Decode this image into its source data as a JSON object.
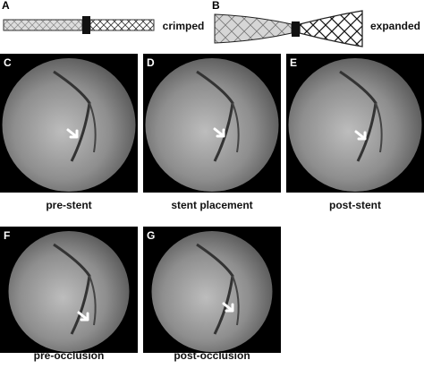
{
  "stents": [
    {
      "label": "A",
      "caption": "crimped"
    },
    {
      "label": "B",
      "caption": "expanded"
    }
  ],
  "panels": [
    {
      "label": "C",
      "caption": "pre-stent"
    },
    {
      "label": "D",
      "caption": "stent placement"
    },
    {
      "label": "E",
      "caption": "post-stent"
    },
    {
      "label": "F",
      "caption": "pre-occlusion"
    },
    {
      "label": "G",
      "caption": "post-occlusion"
    }
  ]
}
